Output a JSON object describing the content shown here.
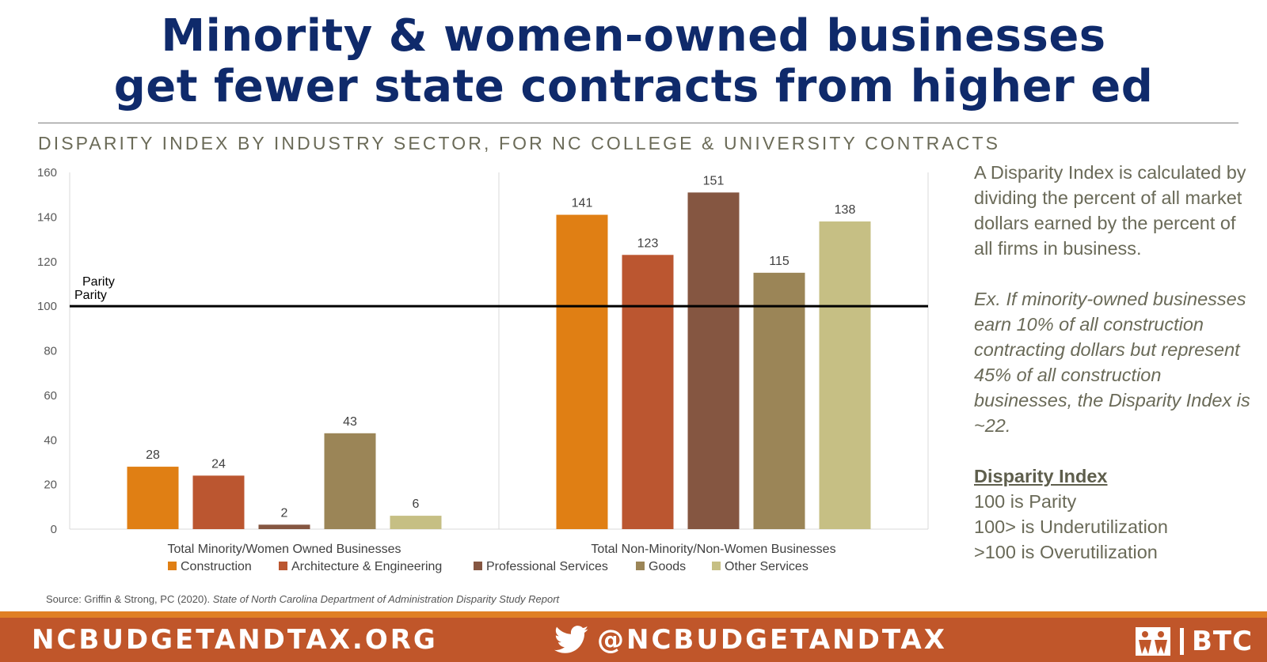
{
  "header": {
    "title_line1": "Minority & women-owned businesses",
    "title_line2": "get fewer state contracts from higher ed",
    "subtitle": "DISPARITY INDEX BY INDUSTRY SECTOR, FOR NC COLLEGE & UNIVERSITY CONTRACTS"
  },
  "chart_data": {
    "type": "bar",
    "categories": [
      "Total Minority/Women Owned Businesses",
      "Total Non-Minority/Non-Women Businesses"
    ],
    "series": [
      {
        "name": "Construction",
        "color": "#e07f14",
        "values": [
          28,
          141
        ]
      },
      {
        "name": "Architecture & Engineering",
        "color": "#bb5630",
        "values": [
          24,
          123
        ]
      },
      {
        "name": "Professional Services",
        "color": "#855641",
        "values": [
          2,
          151
        ]
      },
      {
        "name": "Goods",
        "color": "#9b8557",
        "values": [
          43,
          115
        ]
      },
      {
        "name": "Other Services",
        "color": "#c6bf84",
        "values": [
          6,
          138
        ]
      }
    ],
    "ylim": [
      0,
      160
    ],
    "yticks": [
      0,
      20,
      40,
      60,
      80,
      100,
      120,
      140,
      160
    ],
    "reference_line": {
      "value": 100,
      "labels": [
        "Parity",
        "Parity"
      ]
    },
    "legend_position": "bottom",
    "grid": false
  },
  "side": {
    "definition": "A Disparity Index is calculated by dividing the percent of all market dollars earned by the percent of all firms in business.",
    "example": "Ex. If minority-owned businesses earn 10% of all construction contracting dollars but represent 45% of all construction businesses, the Disparity Index is ~22.",
    "heading": "Disparity Index",
    "line1": "100 is Parity",
    "line2": "100> is Underutilization",
    "line3": ">100 is Overutilization"
  },
  "source": {
    "prefix": "Source: Griffin & Strong, PC (2020).",
    "title": "State of North Carolina Department of Administration Disparity Study Report"
  },
  "footer": {
    "website": "NCBUDGETANDTAX.ORG",
    "twitter": "@NCBUDGETANDTAX",
    "logo_text": "BTC",
    "twitter_icon": "twitter-bird-icon",
    "logo_icon": "btc-people-icon",
    "colors": {
      "bar": "#c0562a",
      "stripe": "#e07f24"
    }
  }
}
